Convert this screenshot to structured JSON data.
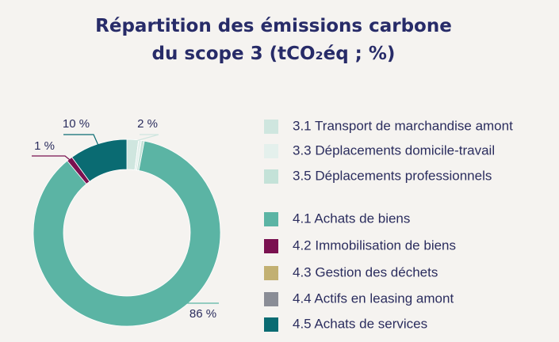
{
  "chart_data": {
    "type": "donut",
    "title": [
      "Répartition des émissions carbone",
      "du scope 3 (tCO₂éq ; %)"
    ],
    "categories": [
      "3.1 Transport de marchandise amont",
      "3.3 Déplacements domicile-travail",
      "3.5 Déplacements professionnels",
      "4.1 Achats de biens",
      "4.2 Immobilisation de biens",
      "4.3 Gestion des déchets",
      "4.4 Actifs en leasing amont",
      "4.5 Achats de services"
    ],
    "values": [
      2,
      0.5,
      0.5,
      86,
      1,
      0,
      0,
      10
    ],
    "value_labels": [
      "2 %",
      null,
      null,
      "86 %",
      "1 %",
      null,
      null,
      "10 %"
    ],
    "colors": [
      "#cfe6df",
      "#e4f0ec",
      "#c4e2d8",
      "#5bb4a4",
      "#7a1150",
      "#c2b072",
      "#8a8d96",
      "#0a6b72"
    ]
  }
}
